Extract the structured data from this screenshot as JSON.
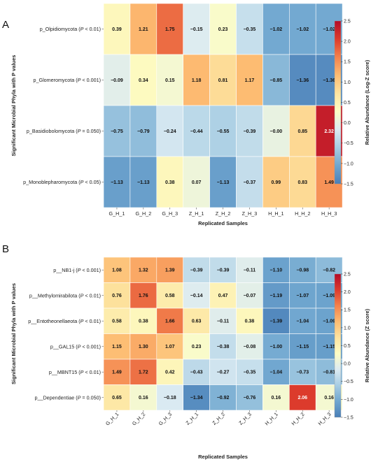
{
  "colors": {
    "colormap": [
      "#4a7fb8",
      "#6fa6cf",
      "#a7cde3",
      "#dcebf2",
      "#fdfdc5",
      "#fde4a0",
      "#fdbc72",
      "#f3824d",
      "#dc3b2c",
      "#b40a28"
    ]
  },
  "chart_data": [
    {
      "panel_label": "A",
      "type": "heatmap",
      "xlabel": "Replicated Samples",
      "ylabel": "Significant Microbial Phyla with P values",
      "colorbar_label": "Relative Abundance (Log-Z score)",
      "colorbar_range": [
        -1.5,
        2.5
      ],
      "colorbar_ticks": [
        "2.5",
        "2.0",
        "1.5",
        "1.0",
        "0.5",
        "0.0",
        "−0.5",
        "−1.0",
        "−1.5"
      ],
      "columns": [
        "G_H_1",
        "G_H_2",
        "G_H_3",
        "Z_H_1",
        "Z_H_2",
        "Z_H_3",
        "H_H_1",
        "H_H_2",
        "H_H_3"
      ],
      "rows": [
        {
          "name": "p_Olpidiomycota",
          "pval": "(P < 0.01)",
          "values": [
            0.39,
            1.21,
            1.75,
            -0.15,
            0.23,
            -0.35,
            -1.02,
            -1.02,
            -1.02
          ],
          "labels": [
            "0.39",
            "1.21",
            "1.75",
            "−0.15",
            "0.23",
            "−0.35",
            "−1.02",
            "−1.02",
            "−1.02"
          ]
        },
        {
          "name": "p_Glomeromycota",
          "pval": "(P < 0.001)",
          "values": [
            -0.09,
            0.34,
            0.15,
            1.18,
            0.81,
            1.17,
            -0.85,
            -1.36,
            -1.36
          ],
          "labels": [
            "−0.09",
            "0.34",
            "0.15",
            "1.18",
            "0.81",
            "1.17",
            "−0.85",
            "−1.36",
            "−1.36"
          ]
        },
        {
          "name": "p_Basidiobolomycota",
          "pval": "(P = 0.050)",
          "values": [
            -0.75,
            -0.79,
            -0.24,
            -0.44,
            -0.55,
            -0.39,
            -0.0,
            0.85,
            2.32
          ],
          "labels": [
            "−0.75",
            "−0.79",
            "−0.24",
            "−0.44",
            "−0.55",
            "−0.39",
            "−0.00",
            "0.85",
            "2.32"
          ]
        },
        {
          "name": "p_Monoblepharomycota",
          "pval": "(P < 0.05)",
          "values": [
            -1.13,
            -1.13,
            0.38,
            0.07,
            -1.13,
            -0.37,
            0.99,
            0.83,
            1.49
          ],
          "labels": [
            "−1.13",
            "−1.13",
            "0.38",
            "0.07",
            "−1.13",
            "−0.37",
            "0.99",
            "0.83",
            "1.49"
          ]
        }
      ]
    },
    {
      "panel_label": "B",
      "type": "heatmap",
      "xlabel": "Replicated Samples",
      "ylabel": "Significant Microbial Phyla with P values",
      "colorbar_label": "Relative Abundance (Z score)",
      "colorbar_range": [
        -1.5,
        2.5
      ],
      "colorbar_ticks": [
        "2.5",
        "2.0",
        "1.5",
        "1.0",
        "0.5",
        "0.0",
        "−0.5",
        "−1.0",
        "−1.5"
      ],
      "columns": [
        "G_H_1",
        "G_H_2",
        "G_H_3",
        "Z_H_1",
        "Z_H_2",
        "Z_H_3",
        "H_H_1",
        "H_H_2",
        "H_H_3"
      ],
      "rows": [
        {
          "name": "p__NB1-j",
          "pval": "(P < 0.001)",
          "values": [
            1.08,
            1.32,
            1.39,
            -0.39,
            -0.39,
            -0.11,
            -1.1,
            -0.98,
            -0.82
          ],
          "labels": [
            "1.08",
            "1.32",
            "1.39",
            "−0.39",
            "−0.39",
            "−0.11",
            "−1.10",
            "−0.98",
            "−0.82"
          ]
        },
        {
          "name": "p__Methylomirabilota",
          "pval": "(P < 0.01)",
          "values": [
            0.76,
            1.76,
            0.58,
            -0.14,
            0.47,
            -0.07,
            -1.19,
            -1.07,
            -1.09
          ],
          "labels": [
            "0.76",
            "1.76",
            "0.58",
            "−0.14",
            "0.47",
            "−0.07",
            "−1.19",
            "−1.07",
            "−1.09"
          ]
        },
        {
          "name": "p__Entotheonellaeota",
          "pval": "(P < 0.01)",
          "values": [
            0.58,
            0.38,
            1.66,
            0.63,
            -0.11,
            0.38,
            -1.39,
            -1.04,
            -1.09
          ],
          "labels": [
            "0.58",
            "0.38",
            "1.66",
            "0.63",
            "−0.11",
            "0.38",
            "−1.39",
            "−1.04",
            "−1.09"
          ]
        },
        {
          "name": "p__GAL15",
          "pval": "(P < 0.001)",
          "values": [
            1.15,
            1.3,
            1.07,
            0.23,
            -0.38,
            -0.08,
            -1.0,
            -1.15,
            -1.15
          ],
          "labels": [
            "1.15",
            "1.30",
            "1.07",
            "0.23",
            "−0.38",
            "−0.08",
            "−1.00",
            "−1.15",
            "−1.15"
          ]
        },
        {
          "name": "p__MBNT15",
          "pval": "(P < 0.01)",
          "values": [
            1.49,
            1.72,
            0.42,
            -0.43,
            -0.27,
            -0.35,
            -1.04,
            -0.73,
            -0.81
          ],
          "labels": [
            "1.49",
            "1.72",
            "0.42",
            "−0.43",
            "−0.27",
            "−0.35",
            "−1.04",
            "−0.73",
            "−0.81"
          ]
        },
        {
          "name": "p__Dependentiae",
          "pval": "(P = 0.050)",
          "values": [
            0.65,
            0.16,
            -0.18,
            -1.34,
            -0.92,
            -0.76,
            0.16,
            2.06,
            0.16
          ],
          "labels": [
            "0.65",
            "0.16",
            "−0.18",
            "−1.34",
            "−0.92",
            "−0.76",
            "0.16",
            "2.06",
            "0.16"
          ]
        }
      ]
    }
  ]
}
